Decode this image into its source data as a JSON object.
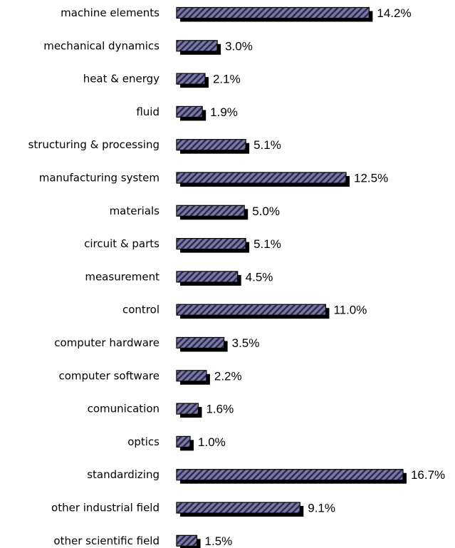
{
  "chart_data": {
    "type": "bar",
    "orientation": "horizontal",
    "title": "",
    "xlabel": "",
    "ylabel": "",
    "categories": [
      "machine elements",
      "mechanical dynamics",
      "heat & energy",
      "fluid",
      "structuring & processing",
      "manufacturing system",
      "materials",
      "circuit & parts",
      "measurement",
      "control",
      "computer hardware",
      "computer software",
      "comunication",
      "optics",
      "standardizing",
      "other industrial field",
      "other scientific field"
    ],
    "values": [
      14.2,
      3.0,
      2.1,
      1.9,
      5.1,
      12.5,
      5.0,
      5.1,
      4.5,
      11.0,
      3.5,
      2.2,
      1.6,
      1.0,
      16.7,
      9.1,
      1.5
    ],
    "value_labels": [
      "14.2%",
      "3.0%",
      "2.1%",
      "1.9%",
      "5.1%",
      "12.5%",
      "5.0%",
      "5.1%",
      "4.5%",
      "11.0%",
      "3.5%",
      "2.2%",
      "1.6%",
      "1.0%",
      "16.7%",
      "9.1%",
      "1.5%"
    ],
    "unit": "%",
    "bar_style": "diagonal hatch with drop shadow",
    "colors": {
      "bar_fill": "#7a7aa0",
      "hatch": "#2a2a52",
      "outline": "#000000",
      "shadow": "#000000"
    },
    "grid": false,
    "legend": "none"
  }
}
